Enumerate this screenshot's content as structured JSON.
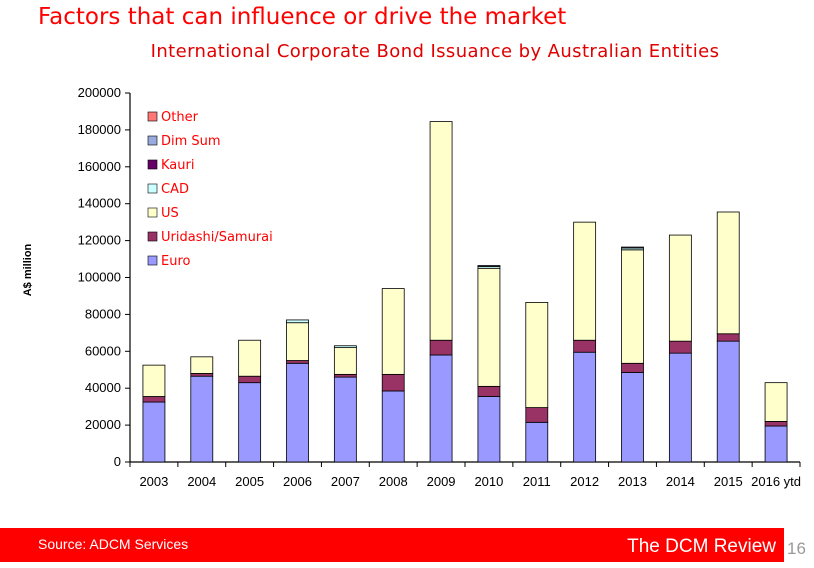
{
  "slide": {
    "title": "Factors that can influence or drive the market",
    "source": "Source: ADCM Services",
    "brand": "The DCM Review",
    "page_number": "16"
  },
  "chart_data": {
    "type": "bar",
    "stacked": true,
    "title": "International Corporate Bond Issuance by Australian Entities",
    "xlabel": "",
    "ylabel": "A$ million",
    "ylim": [
      0,
      200000
    ],
    "yticks": [
      0,
      20000,
      40000,
      60000,
      80000,
      100000,
      120000,
      140000,
      160000,
      180000,
      200000
    ],
    "grid": false,
    "legend_position": "top-left",
    "categories": [
      "2003",
      "2004",
      "2005",
      "2006",
      "2007",
      "2008",
      "2009",
      "2010",
      "2011",
      "2012",
      "2013",
      "2014",
      "2015",
      "2016 ytd"
    ],
    "series": [
      {
        "name": "Euro",
        "color": "#9999ff",
        "values": [
          32500,
          46500,
          43000,
          53500,
          46000,
          38500,
          58000,
          35500,
          21500,
          59500,
          48500,
          59000,
          65500,
          19500
        ]
      },
      {
        "name": "Uridashi/Samurai",
        "color": "#993366",
        "values": [
          3000,
          1500,
          3500,
          1500,
          1500,
          9000,
          8000,
          5500,
          8000,
          6500,
          5000,
          6500,
          4000,
          2500
        ]
      },
      {
        "name": "US",
        "color": "#ffffcc",
        "values": [
          17000,
          9000,
          19500,
          20500,
          14500,
          46500,
          118500,
          64000,
          57000,
          64000,
          61500,
          57500,
          66000,
          21000
        ]
      },
      {
        "name": "CAD",
        "color": "#ccffff",
        "values": [
          0,
          0,
          0,
          1500,
          1000,
          0,
          0,
          1000,
          0,
          0,
          1000,
          0,
          0,
          0
        ]
      },
      {
        "name": "Kauri",
        "color": "#660066",
        "values": [
          0,
          0,
          0,
          0,
          0,
          0,
          0,
          0,
          0,
          0,
          0,
          0,
          0,
          0
        ]
      },
      {
        "name": "Dim Sum",
        "color": "#99aadd",
        "values": [
          0,
          0,
          0,
          0,
          0,
          0,
          0,
          500,
          0,
          0,
          500,
          0,
          0,
          0
        ]
      },
      {
        "name": "Other",
        "color": "#ff7777",
        "values": [
          0,
          0,
          0,
          0,
          0,
          0,
          0,
          0,
          0,
          0,
          0,
          0,
          0,
          0
        ]
      }
    ]
  },
  "colors": {
    "title_red": "#ff0000",
    "footer_red": "#ff0000",
    "legend_text": "#ff0000"
  }
}
